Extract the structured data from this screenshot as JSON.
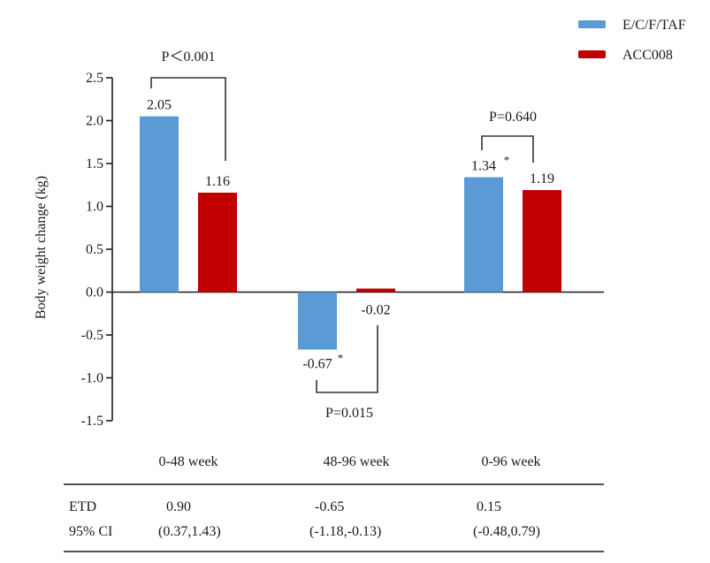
{
  "chart_data": {
    "type": "bar",
    "title": "",
    "xlabel": "",
    "ylabel": "Body weight change (kg)",
    "ylim": [
      -1.5,
      2.5
    ],
    "yticks": [
      2.5,
      2.0,
      1.5,
      1.0,
      0.5,
      0.0,
      -0.5,
      -1.0,
      -1.5
    ],
    "ytick_labels": [
      "2.5",
      "2.0",
      "1.5",
      "1.0",
      "0.5",
      "0.0",
      "-0.5",
      "-1.0",
      "-1.5"
    ],
    "grid": false,
    "legend_position": "top-right",
    "categories": [
      "0-48 week",
      "48-96 week",
      "0-96 week"
    ],
    "series": [
      {
        "name": "E/C/F/TAF",
        "color": "#5b9bd5",
        "values": [
          2.05,
          -0.67,
          1.34
        ],
        "labels": [
          "2.05",
          "-0.67",
          "1.34"
        ],
        "starred": [
          false,
          true,
          true
        ]
      },
      {
        "name": "ACC008",
        "color": "#c00000",
        "values": [
          1.16,
          -0.02,
          1.19
        ],
        "labels": [
          "1.16",
          "-0.02",
          "1.19"
        ],
        "starred": [
          false,
          false,
          false
        ]
      }
    ],
    "comparisons": [
      {
        "category": "0-48 week",
        "label": "P＜0.001",
        "direction": "above"
      },
      {
        "category": "48-96 week",
        "label": "P=0.015",
        "direction": "below"
      },
      {
        "category": "0-96 week",
        "label": "P=0.640",
        "direction": "above"
      }
    ],
    "star_symbol": "*"
  },
  "table": {
    "columns": [
      "",
      "0-48 week",
      "48-96 week",
      "0-96 week"
    ],
    "rows": [
      {
        "label": "ETD",
        "values": [
          "0.90",
          "-0.65",
          "0.15"
        ]
      },
      {
        "label": "95% CI",
        "values": [
          "(0.37,1.43)",
          "(-1.18,-0.13)",
          "(-0.48,0.79)"
        ]
      }
    ]
  }
}
